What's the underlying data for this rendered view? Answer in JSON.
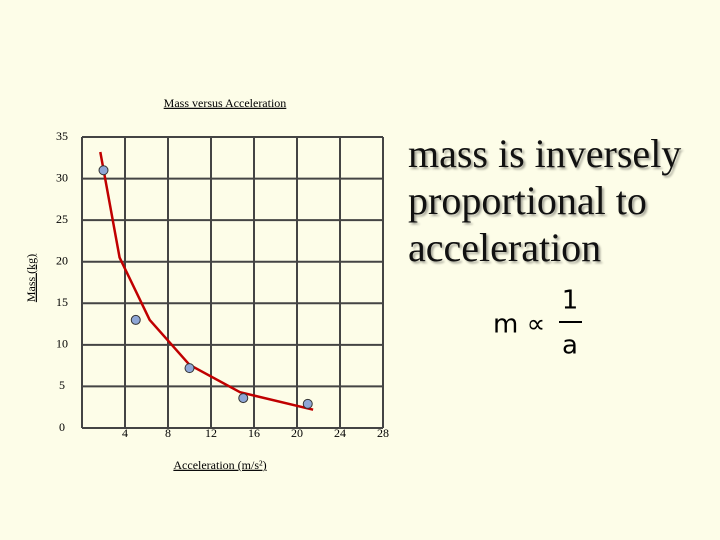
{
  "chart_data": {
    "type": "scatter",
    "title": "Mass versus Acceleration",
    "x_label": "Acceleration (m/s²)",
    "y_label": "Mass (kg)",
    "series": [
      {
        "color": "#8ea6d6",
        "x": [
          2,
          5,
          10,
          15,
          21
        ],
        "values": [
          31,
          13,
          7.2,
          3.6,
          2.9
        ]
      }
    ],
    "trend": {
      "color": "#c00000",
      "x": [
        1.7,
        3.5,
        6.3,
        10,
        14.7,
        21.5
      ],
      "values": [
        33.2,
        20.5,
        13,
        7.6,
        4.3,
        2.2
      ]
    },
    "xlim": [
      0,
      28
    ],
    "xticks": [
      4,
      8,
      12,
      16,
      20,
      24,
      28
    ],
    "ylim": [
      0,
      35
    ],
    "yticks": [
      0,
      5,
      10,
      15,
      20,
      25,
      30,
      35
    ],
    "grid": true
  },
  "statement": {
    "lines": [
      "mass is inversely",
      "proportional to",
      "acceleration"
    ]
  },
  "formula": {
    "lhs": "m ∝",
    "numerator": "1",
    "denominator": "a"
  }
}
